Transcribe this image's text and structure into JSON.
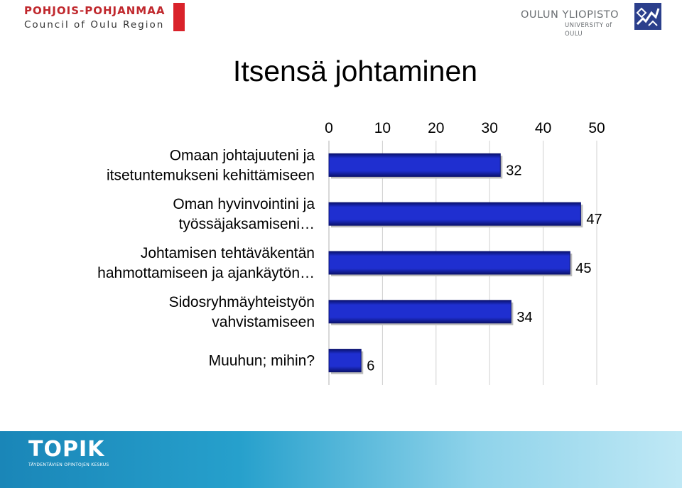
{
  "header": {
    "left_logo_line1": "POHJOIS-POHJANMAA",
    "left_logo_line2": "Council of Oulu Region",
    "right_logo_line1": "OULUN YLIOPISTO",
    "right_logo_line2": "UNIVERSITY of OULU"
  },
  "footer": {
    "brand": "TOPIK",
    "subtitle": "TÄYDENTÄVIEN OPINTOJEN KESKUS"
  },
  "colors": {
    "bar": "#1f2fd0",
    "bar_dark": "#0a1270",
    "accent_red": "#d9222a",
    "footer_blue": "#1a86b8"
  },
  "chart_data": {
    "type": "bar",
    "orientation": "horizontal",
    "title": "Itsensä johtaminen",
    "categories": [
      [
        "Omaan johtajuuteni ja",
        "itsetuntemukseni kehittämiseen"
      ],
      [
        "Oman hyvinvointini ja",
        "työssäjaksamiseni…"
      ],
      [
        "Johtamisen tehtäväkentän",
        "hahmottamiseen ja ajankäytön…"
      ],
      [
        "Sidosryhmäyhteistyön",
        "vahvistamiseen"
      ],
      [
        "Muuhun; mihin?"
      ]
    ],
    "values": [
      32,
      47,
      45,
      34,
      6
    ],
    "xlim": [
      0,
      50
    ],
    "xticks": [
      "0",
      "10",
      "20",
      "30",
      "40",
      "50"
    ],
    "axis_position": "top",
    "grid": true,
    "legend": "none"
  }
}
